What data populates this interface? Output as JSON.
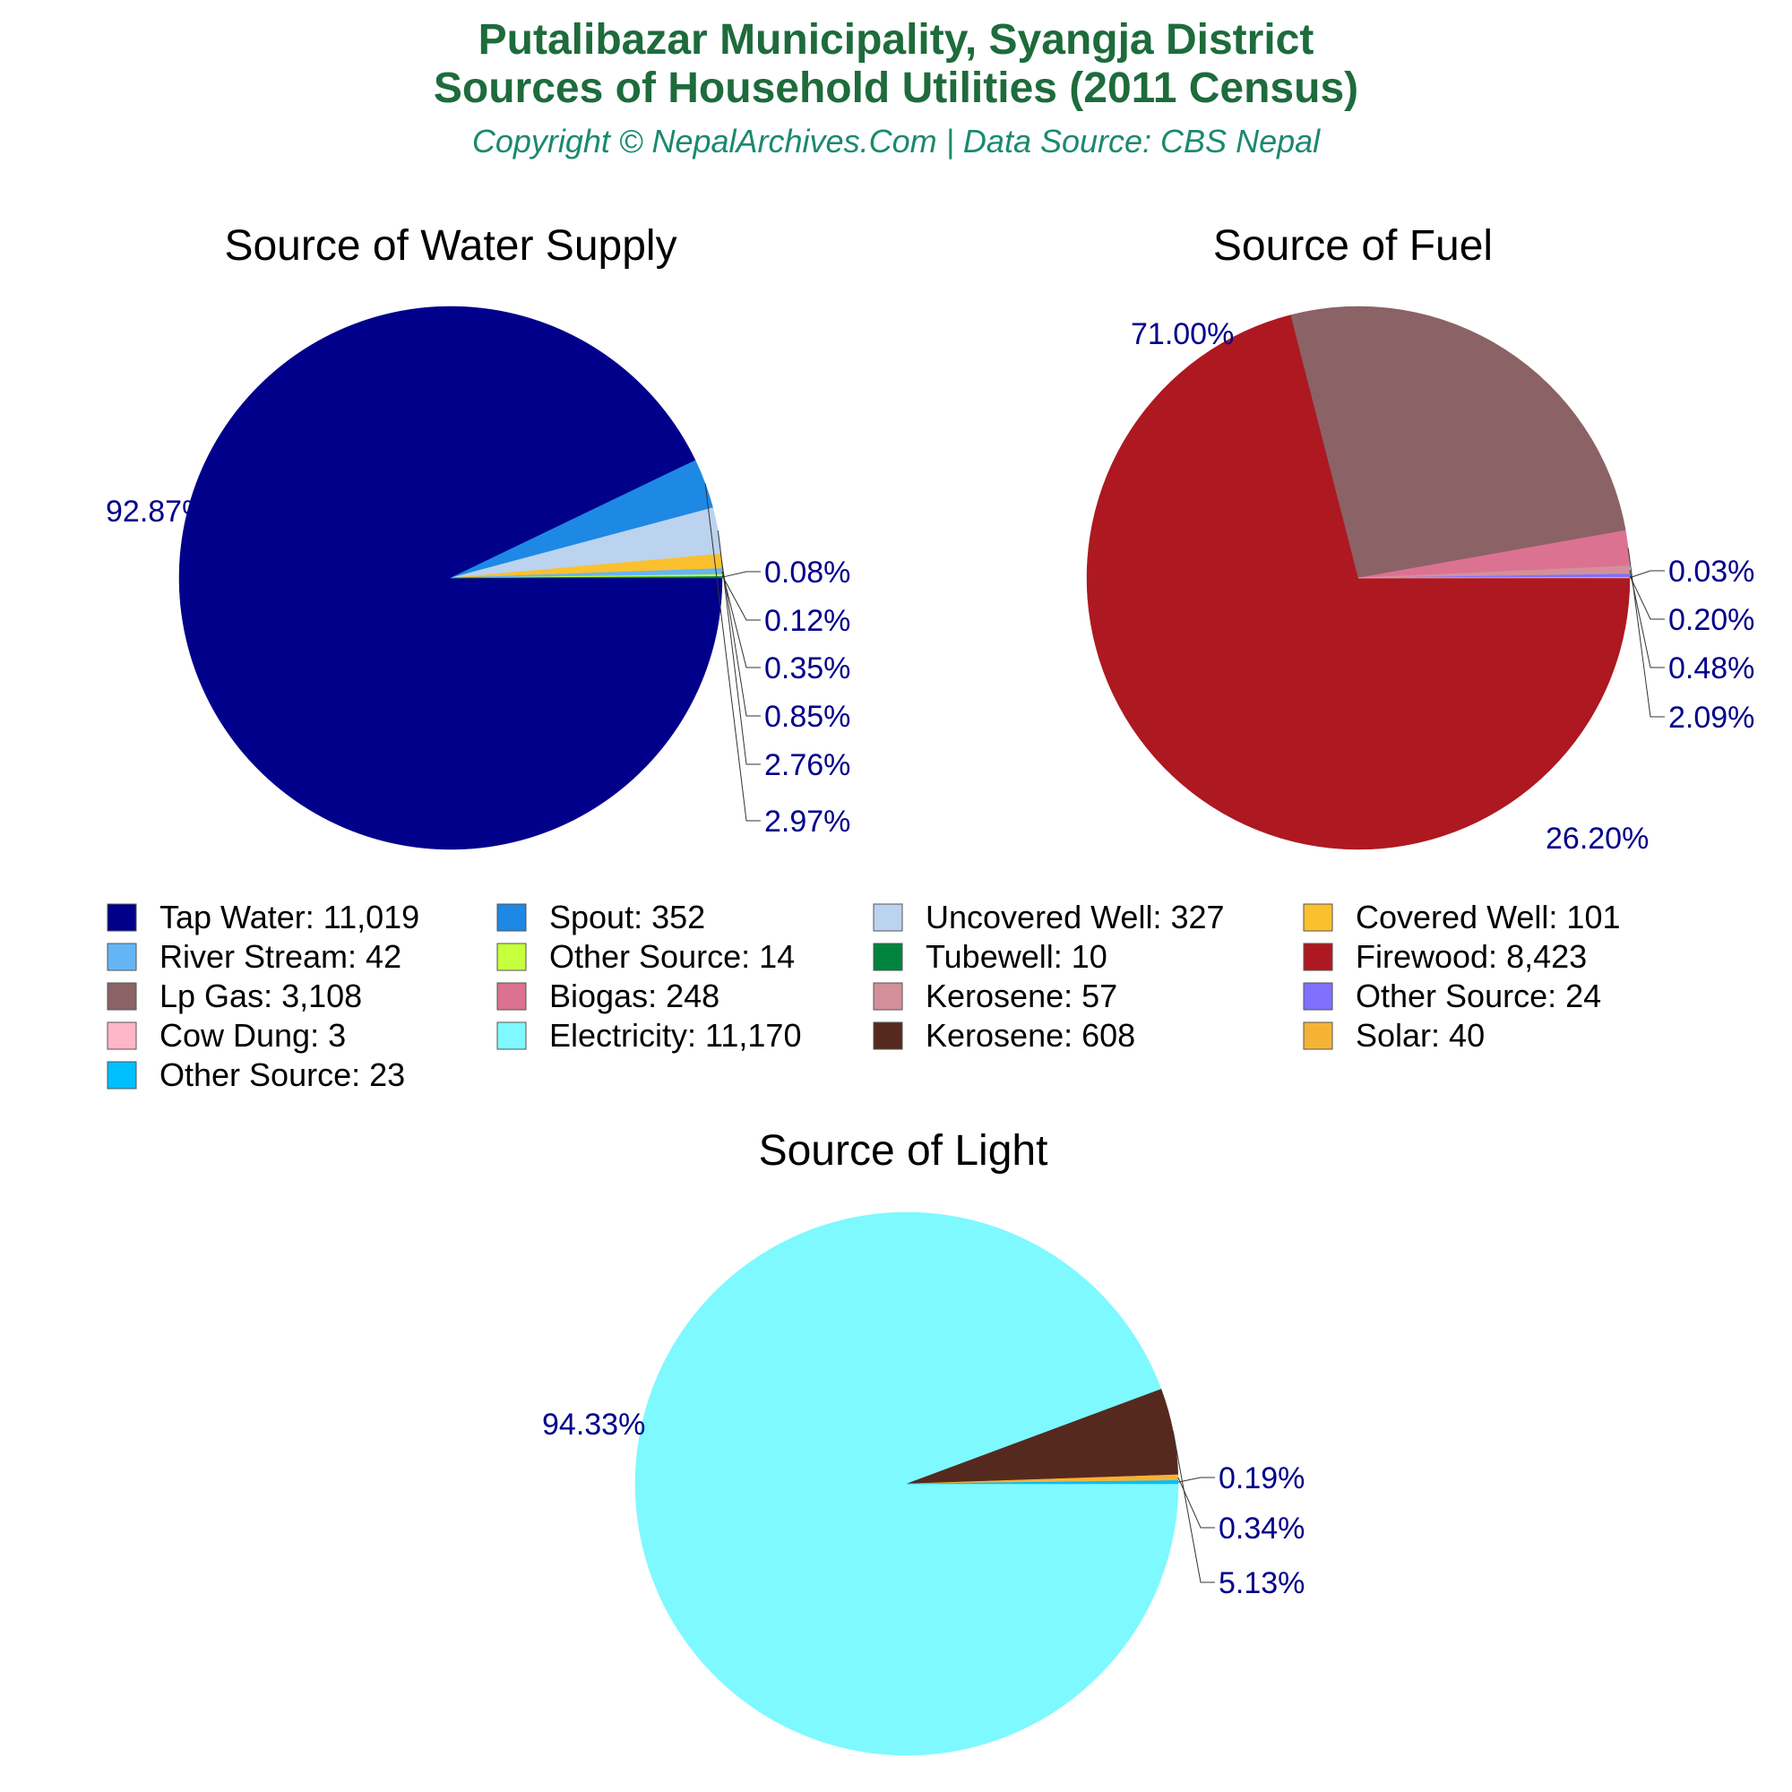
{
  "header": {
    "title_line1": "Putalibazar Municipality, Syangja District",
    "title_line2": "Sources of Household Utilities (2011 Census)",
    "subtitle": "Copyright © NepalArchives.Com | Data Source: CBS Nepal"
  },
  "colors": {
    "title": "#1e6b3c",
    "subtitle": "#1a8a6e",
    "pct_label": "#00008b",
    "slice_border": "#ffffff",
    "leader_line": "#333333"
  },
  "chart_data": [
    {
      "type": "pie",
      "title": "Source of Water Supply",
      "slices": [
        {
          "label": "Tap Water",
          "value": 11019,
          "value_text": "11,019",
          "pct_text": "92.87%",
          "color": "#00008b"
        },
        {
          "label": "Spout",
          "value": 352,
          "value_text": "352",
          "pct_text": "2.97%",
          "color": "#1e88e5"
        },
        {
          "label": "Uncovered Well",
          "value": 327,
          "value_text": "327",
          "pct_text": "2.76%",
          "color": "#bbd3ee"
        },
        {
          "label": "Covered Well",
          "value": 101,
          "value_text": "101",
          "pct_text": "0.85%",
          "color": "#fbc02d"
        },
        {
          "label": "River Stream",
          "value": 42,
          "value_text": "42",
          "pct_text": "0.35%",
          "color": "#64b5f6"
        },
        {
          "label": "Other Source",
          "value": 14,
          "value_text": "14",
          "pct_text": "0.12%",
          "color": "#c6ff3c"
        },
        {
          "label": "Tubewell",
          "value": 10,
          "value_text": "10",
          "pct_text": "0.08%",
          "color": "#00843d"
        }
      ]
    },
    {
      "type": "pie",
      "title": "Source of Fuel",
      "slices": [
        {
          "label": "Firewood",
          "value": 8423,
          "value_text": "8,423",
          "pct_text": "71.00%",
          "color": "#ae1820"
        },
        {
          "label": "Lp Gas",
          "value": 3108,
          "value_text": "3,108",
          "pct_text": "26.20%",
          "color": "#8b6266"
        },
        {
          "label": "Biogas",
          "value": 248,
          "value_text": "248",
          "pct_text": "2.09%",
          "color": "#dc7292"
        },
        {
          "label": "Kerosene",
          "value": 57,
          "value_text": "57",
          "pct_text": "0.48%",
          "color": "#d4909a"
        },
        {
          "label": "Other Source",
          "value": 24,
          "value_text": "24",
          "pct_text": "0.20%",
          "color": "#8070ff"
        },
        {
          "label": "Cow Dung",
          "value": 3,
          "value_text": "3",
          "pct_text": "0.03%",
          "color": "#ffb6c8"
        }
      ]
    },
    {
      "type": "pie",
      "title": "Source of Light",
      "slices": [
        {
          "label": "Electricity",
          "value": 11170,
          "value_text": "11,170",
          "pct_text": "94.33%",
          "color": "#7ef9ff"
        },
        {
          "label": "Kerosene",
          "value": 608,
          "value_text": "608",
          "pct_text": "5.13%",
          "color": "#56291f"
        },
        {
          "label": "Solar",
          "value": 40,
          "value_text": "40",
          "pct_text": "0.34%",
          "color": "#f5b335"
        },
        {
          "label": "Other Source",
          "value": 23,
          "value_text": "23",
          "pct_text": "0.19%",
          "color": "#00bfff"
        }
      ]
    }
  ],
  "legend": [
    {
      "text": "Tap Water: 11,019",
      "color": "#00008b"
    },
    {
      "text": "Spout: 352",
      "color": "#1e88e5"
    },
    {
      "text": "Uncovered Well: 327",
      "color": "#bbd3ee"
    },
    {
      "text": "Covered Well: 101",
      "color": "#fbc02d"
    },
    {
      "text": "River Stream: 42",
      "color": "#64b5f6"
    },
    {
      "text": "Other Source: 14",
      "color": "#c6ff3c"
    },
    {
      "text": "Tubewell: 10",
      "color": "#00843d"
    },
    {
      "text": "Firewood: 8,423",
      "color": "#ae1820"
    },
    {
      "text": "Lp Gas: 3,108",
      "color": "#8b6266"
    },
    {
      "text": "Biogas: 248",
      "color": "#dc7292"
    },
    {
      "text": "Kerosene: 57",
      "color": "#d4909a"
    },
    {
      "text": "Other Source: 24",
      "color": "#8070ff"
    },
    {
      "text": "Cow Dung: 3",
      "color": "#ffb6c8"
    },
    {
      "text": "Electricity: 11,170",
      "color": "#7ef9ff"
    },
    {
      "text": "Kerosene: 608",
      "color": "#56291f"
    },
    {
      "text": "Solar: 40",
      "color": "#f5b335"
    },
    {
      "text": "Other Source: 23",
      "color": "#00bfff"
    }
  ]
}
